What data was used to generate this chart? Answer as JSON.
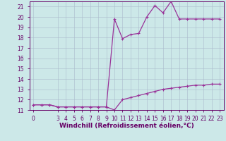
{
  "title": "",
  "xlabel": "Windchill (Refroidissement éolien,°C)",
  "x_values": [
    0,
    1,
    2,
    3,
    4,
    5,
    6,
    7,
    8,
    9,
    10,
    11,
    12,
    13,
    14,
    15,
    16,
    17,
    18,
    19,
    20,
    21,
    22,
    23
  ],
  "curve1": [
    11.5,
    11.5,
    11.5,
    11.3,
    11.3,
    11.3,
    11.3,
    11.3,
    11.3,
    11.3,
    11.0,
    12.0,
    12.2,
    12.4,
    12.6,
    12.8,
    13.0,
    13.1,
    13.2,
    13.3,
    13.4,
    13.4,
    13.5,
    13.5
  ],
  "curve2": [
    11.5,
    11.5,
    11.5,
    11.3,
    11.3,
    11.3,
    11.3,
    11.3,
    11.3,
    11.3,
    19.8,
    17.9,
    18.3,
    18.4,
    20.0,
    21.1,
    20.4,
    21.5,
    19.8,
    19.8,
    19.8,
    19.8,
    19.8,
    19.8
  ],
  "line_color": "#993399",
  "bg_color": "#cce8e8",
  "grid_color": "#aabbcc",
  "axis_color": "#660066",
  "text_color": "#660066",
  "ylim": [
    11,
    21.5
  ],
  "ytick_min": 11,
  "ytick_max": 21,
  "xlim_min": 0,
  "xlim_max": 23,
  "xticks": [
    0,
    3,
    4,
    5,
    6,
    7,
    8,
    9,
    10,
    11,
    12,
    13,
    14,
    15,
    16,
    17,
    18,
    19,
    20,
    21,
    22,
    23
  ],
  "xlabel_fontsize": 6.5,
  "tick_fontsize": 5.5
}
